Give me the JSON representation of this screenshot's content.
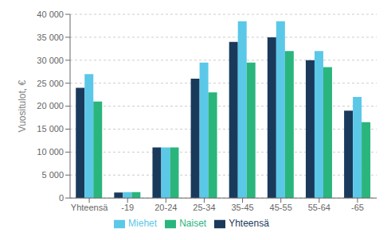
{
  "chart_data": {
    "type": "bar",
    "ylabel": "Vuositulot, €",
    "categories": [
      "Yhteensä",
      "-19",
      "20-24",
      "25-34",
      "35-45",
      "45-55",
      "55-64",
      "-65"
    ],
    "series": [
      {
        "name": "Yhteensä",
        "color": "#1a3a5c",
        "values": [
          24000,
          1200,
          11000,
          26000,
          34000,
          35000,
          30000,
          19000
        ]
      },
      {
        "name": "Miehet",
        "color": "#5bc8e8",
        "values": [
          27000,
          1300,
          11000,
          29500,
          38500,
          38500,
          32000,
          22000
        ]
      },
      {
        "name": "Naiset",
        "color": "#2ab57d",
        "values": [
          21000,
          1300,
          11000,
          23000,
          29500,
          32000,
          28500,
          16500
        ]
      }
    ],
    "ylim": [
      0,
      40000
    ],
    "yticks": [
      0,
      {
        "value": 5000,
        "label": "5 000"
      },
      {
        "value": 10000,
        "label": "10 000"
      },
      {
        "value": 15000,
        "label": "15 000"
      },
      {
        "value": 20000,
        "label": "20 000"
      },
      {
        "value": 25000,
        "label": "25 000"
      },
      {
        "value": 30000,
        "label": "30 000"
      },
      {
        "value": 35000,
        "label": "35 000"
      },
      {
        "value": 40000,
        "label": "40 000"
      }
    ],
    "grid": true,
    "legend": "bottom"
  }
}
